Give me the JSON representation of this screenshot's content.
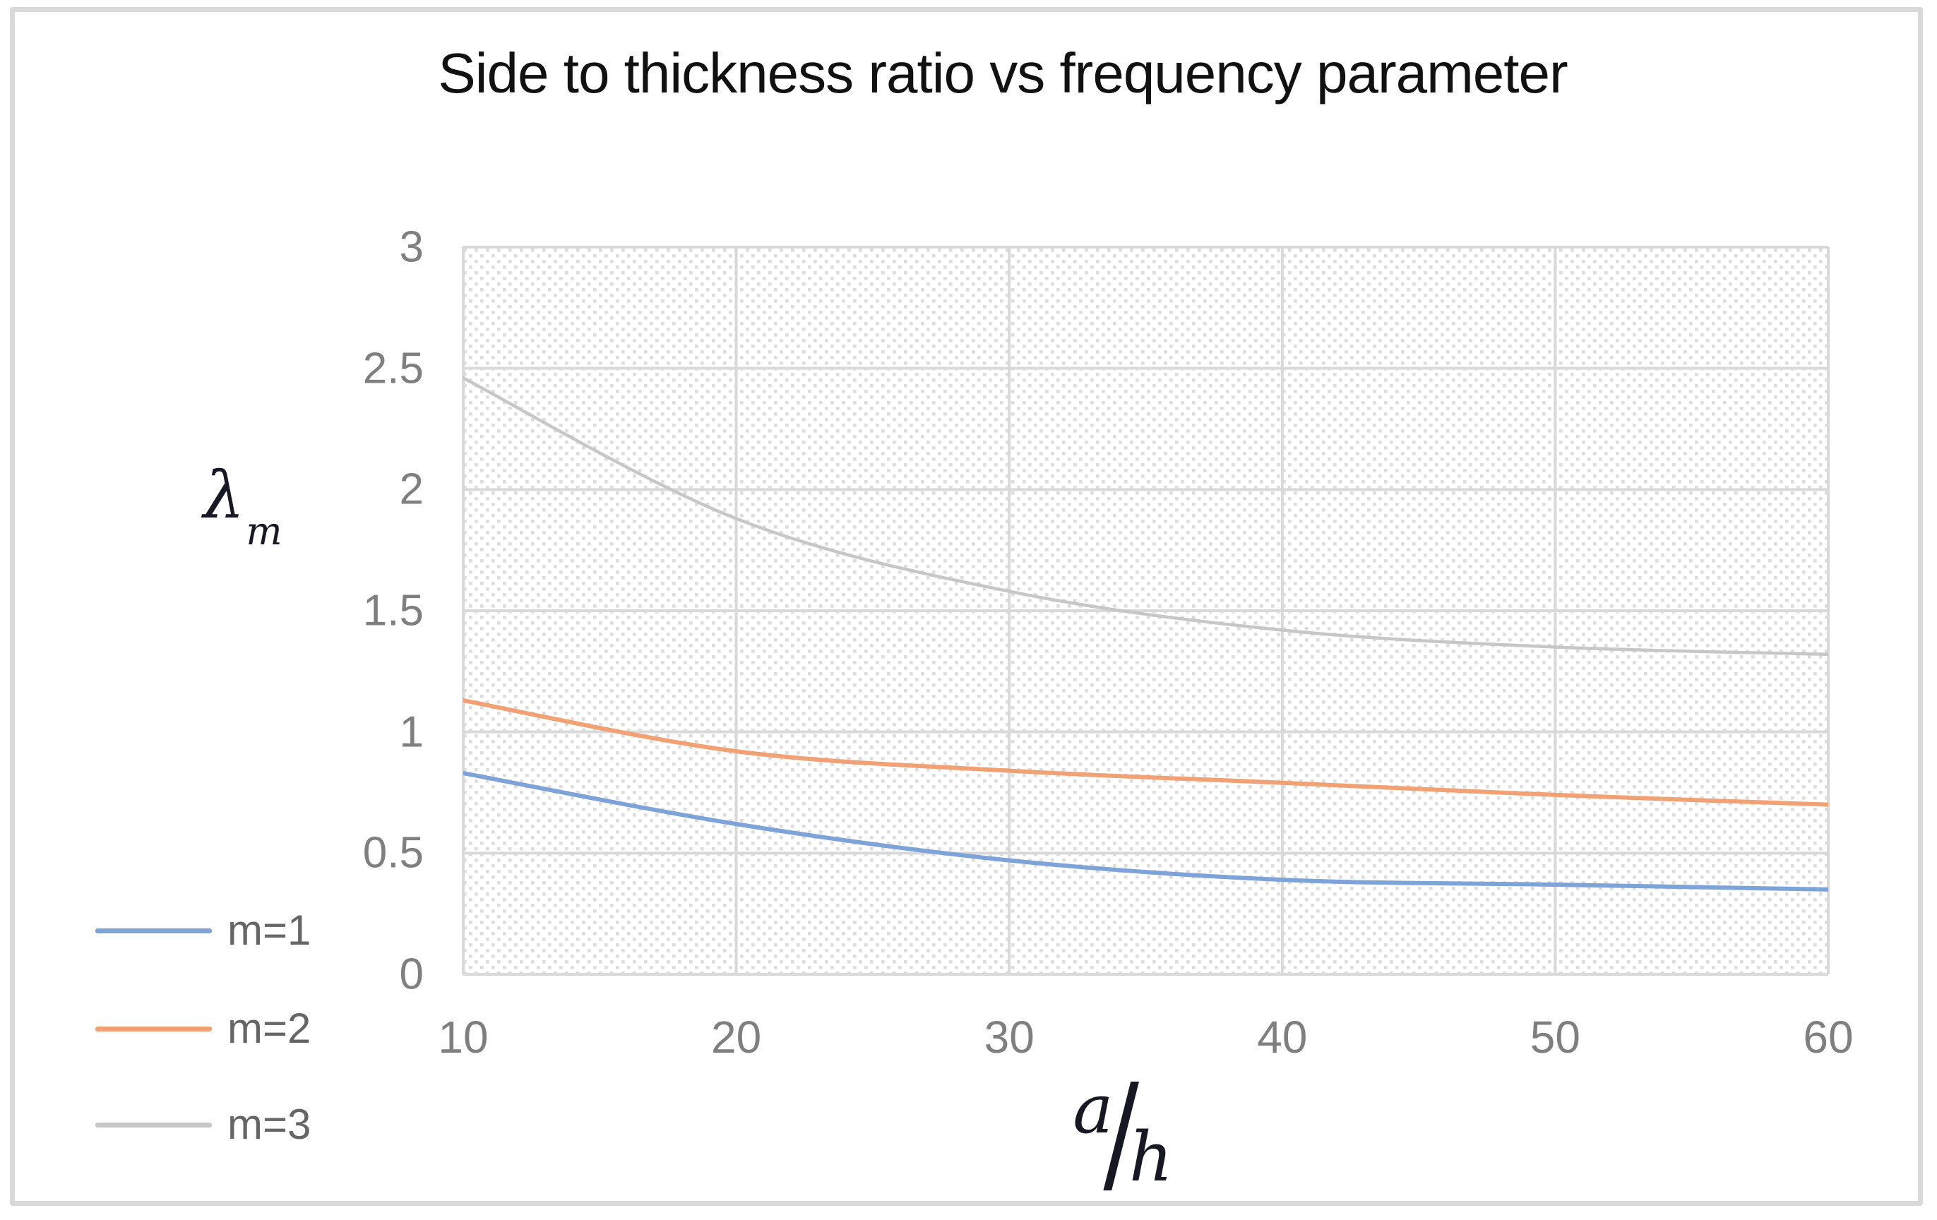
{
  "chart_data": {
    "type": "line",
    "title": "Side to thickness ratio vs frequency parameter",
    "ylabel": {
      "base": "λ",
      "subscript": "m",
      "display": "λm"
    },
    "xlabel": {
      "numerator": "a",
      "slash": "∕",
      "denominator": "h",
      "display": "a/h"
    },
    "x": [
      10,
      20,
      30,
      40,
      50,
      60
    ],
    "xticks": [
      "10",
      "20",
      "30",
      "40",
      "50",
      "60"
    ],
    "yticks": [
      "0",
      "0.5",
      "1",
      "1.5",
      "2",
      "2.5",
      "3"
    ],
    "xlim": [
      10,
      60
    ],
    "ylim": [
      0,
      3
    ],
    "grid": true,
    "plot_background": "diagonal-hatch",
    "legend_position": "bottom-left",
    "series": [
      {
        "name": "m=1",
        "color": "#7da3d8",
        "values": [
          0.83,
          0.62,
          0.47,
          0.39,
          0.37,
          0.35
        ]
      },
      {
        "name": "m=2",
        "color": "#f1a174",
        "values": [
          1.13,
          0.92,
          0.84,
          0.79,
          0.74,
          0.7
        ]
      },
      {
        "name": "m=3",
        "color": "#c7c7c7",
        "values": [
          2.46,
          1.88,
          1.58,
          1.42,
          1.35,
          1.32
        ]
      }
    ],
    "colors": {
      "gridline": "#d9d9d9",
      "hatch_dot": "#dcdcdc",
      "tick_text": "#7f7f7f",
      "legend_text": "#666666",
      "title_text": "#111111",
      "axis_symbol": "#181824",
      "frame_border": "#d9d9d9"
    }
  }
}
